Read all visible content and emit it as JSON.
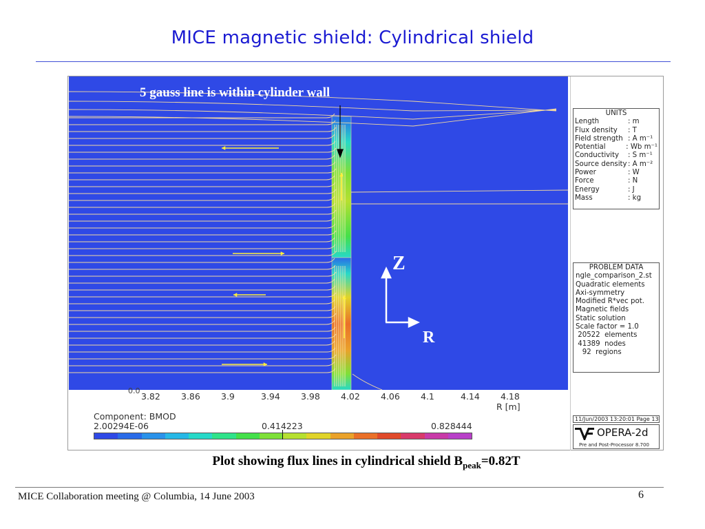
{
  "slide": {
    "title": "MICE magnetic shield: Cylindrical shield",
    "annotation": "5 gauss line is within cylinder wall",
    "axis_z": "Z",
    "axis_r": "R",
    "caption_main": "Plot showing flux lines in cylindrical shield B",
    "caption_sub": "peak",
    "caption_end": "=0.82T",
    "footer": "MICE Collaboration meeting @ Columbia, 14 June 2003",
    "page_number": "6"
  },
  "plot": {
    "background_color": "#2f49e6",
    "flux_line_color": "#f3d9a0",
    "arrow_color": "#ffef3a",
    "x_ticks": [
      "3.82",
      "3.86",
      "3.9",
      "3.94",
      "3.98",
      "4.02",
      "4.06",
      "4.1",
      "4.14",
      "4.18"
    ],
    "x_zero_label": "0.0",
    "x_unit": "R [m]"
  },
  "colorbar": {
    "component_label": "Component: BMOD",
    "min_label": "2.00294E-06",
    "mid_label": "0.414223",
    "max_label": "0.828444",
    "colors": [
      "#2f49e6",
      "#2a6be8",
      "#2a92ea",
      "#27b8e6",
      "#27d9c8",
      "#2fe38a",
      "#44e04a",
      "#7ee038",
      "#b6e030",
      "#e0d42a",
      "#eaa22a",
      "#ea7028",
      "#e04a2a",
      "#d83a6a",
      "#c83aa8",
      "#b840c8"
    ]
  },
  "units": {
    "header": "UNITS",
    "rows": [
      {
        "k": "Length",
        "v": ": m"
      },
      {
        "k": "Flux density",
        "v": ": T"
      },
      {
        "k": "Field strength",
        "v": ": A m⁻¹"
      },
      {
        "k": "Potential",
        "v": ": Wb m⁻¹"
      },
      {
        "k": "Conductivity",
        "v": ": S m⁻¹"
      },
      {
        "k": "Source density",
        "v": ": A m⁻²"
      },
      {
        "k": "Power",
        "v": ": W"
      },
      {
        "k": "Force",
        "v": ": N"
      },
      {
        "k": "Energy",
        "v": ": J"
      },
      {
        "k": "Mass",
        "v": ": kg"
      }
    ]
  },
  "problem": {
    "header": "PROBLEM DATA",
    "lines": [
      "ngle_comparison_2.st",
      "Quadratic elements",
      "Axi-symmetry",
      "Modified R*vec pot.",
      "Magnetic fields",
      "Static solution",
      "Scale factor = 1.0",
      " 20522  elements",
      " 41389  nodes",
      "   92  regions"
    ]
  },
  "software": {
    "date_line": "11/Jun/2003 13:20:01 Page 13",
    "name": "OPERA-2d",
    "sub": "Pre and Post-Processor  8.700"
  }
}
